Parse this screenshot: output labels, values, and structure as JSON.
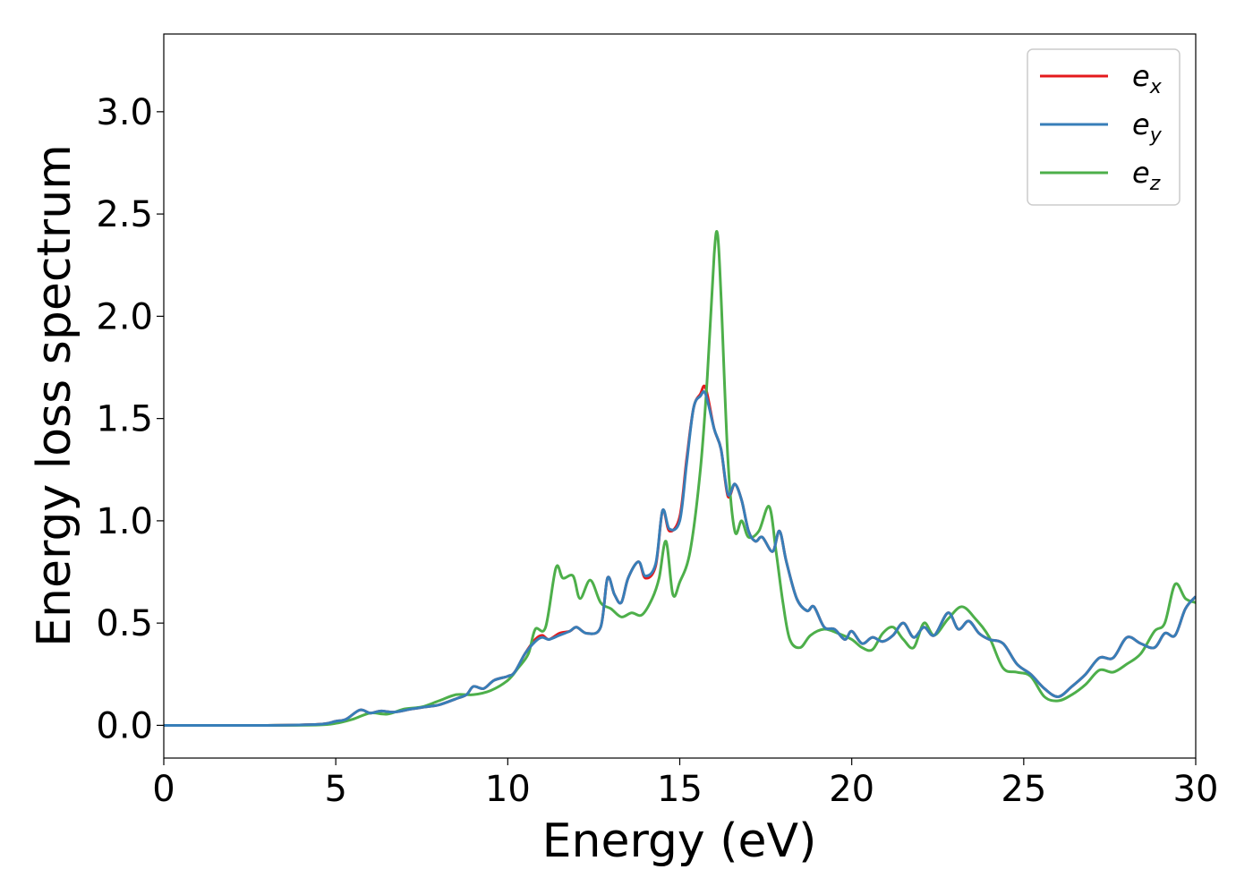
{
  "chart_data": {
    "type": "line",
    "title": "",
    "xlabel": "Energy (eV)",
    "ylabel": "Energy loss spectrum",
    "xlim": [
      0,
      30
    ],
    "ylim": [
      -0.16,
      3.38
    ],
    "xticks": [
      0,
      5,
      10,
      15,
      20,
      25,
      30
    ],
    "xtick_labels": [
      "0",
      "5",
      "10",
      "15",
      "20",
      "25",
      "30"
    ],
    "yticks": [
      0.0,
      0.5,
      1.0,
      1.5,
      2.0,
      2.5,
      3.0
    ],
    "ytick_labels": [
      "0.0",
      "0.5",
      "1.0",
      "1.5",
      "2.0",
      "2.5",
      "3.0"
    ],
    "grid": false,
    "legend_position": "top-right",
    "series": [
      {
        "name": "e_x",
        "legend_base": "e",
        "legend_sub": "x",
        "color": "#e41a1c",
        "points": [
          [
            0,
            0
          ],
          [
            3,
            0
          ],
          [
            4.5,
            0.005
          ],
          [
            5,
            0.02
          ],
          [
            5.3,
            0.03
          ],
          [
            5.7,
            0.075
          ],
          [
            6,
            0.06
          ],
          [
            6.3,
            0.07
          ],
          [
            6.7,
            0.065
          ],
          [
            7.2,
            0.08
          ],
          [
            7.6,
            0.09
          ],
          [
            8,
            0.1
          ],
          [
            8.5,
            0.13
          ],
          [
            8.8,
            0.15
          ],
          [
            9,
            0.19
          ],
          [
            9.3,
            0.18
          ],
          [
            9.6,
            0.22
          ],
          [
            10,
            0.24
          ],
          [
            10.2,
            0.26
          ],
          [
            10.5,
            0.35
          ],
          [
            10.8,
            0.42
          ],
          [
            11,
            0.44
          ],
          [
            11.2,
            0.42
          ],
          [
            11.5,
            0.45
          ],
          [
            11.8,
            0.46
          ],
          [
            12,
            0.48
          ],
          [
            12.3,
            0.45
          ],
          [
            12.7,
            0.48
          ],
          [
            12.9,
            0.72
          ],
          [
            13.1,
            0.64
          ],
          [
            13.3,
            0.6
          ],
          [
            13.5,
            0.72
          ],
          [
            13.8,
            0.8
          ],
          [
            14,
            0.72
          ],
          [
            14.3,
            0.78
          ],
          [
            14.5,
            1.05
          ],
          [
            14.7,
            0.95
          ],
          [
            15,
            1.02
          ],
          [
            15.2,
            1.3
          ],
          [
            15.4,
            1.55
          ],
          [
            15.6,
            1.62
          ],
          [
            15.75,
            1.65
          ],
          [
            16,
            1.45
          ],
          [
            16.2,
            1.35
          ],
          [
            16.4,
            1.12
          ],
          [
            16.6,
            1.18
          ],
          [
            16.8,
            1.1
          ],
          [
            17,
            0.95
          ],
          [
            17.2,
            0.9
          ],
          [
            17.4,
            0.92
          ],
          [
            17.7,
            0.85
          ],
          [
            17.9,
            0.95
          ],
          [
            18.1,
            0.8
          ],
          [
            18.4,
            0.62
          ],
          [
            18.7,
            0.56
          ],
          [
            18.9,
            0.58
          ],
          [
            19.2,
            0.48
          ],
          [
            19.5,
            0.47
          ],
          [
            19.8,
            0.42
          ],
          [
            20,
            0.46
          ],
          [
            20.3,
            0.4
          ],
          [
            20.6,
            0.43
          ],
          [
            20.9,
            0.41
          ],
          [
            21.2,
            0.44
          ],
          [
            21.5,
            0.5
          ],
          [
            21.8,
            0.43
          ],
          [
            22.1,
            0.48
          ],
          [
            22.4,
            0.44
          ],
          [
            22.8,
            0.55
          ],
          [
            23.1,
            0.47
          ],
          [
            23.4,
            0.51
          ],
          [
            23.7,
            0.45
          ],
          [
            24,
            0.42
          ],
          [
            24.4,
            0.4
          ],
          [
            24.8,
            0.3
          ],
          [
            25.2,
            0.25
          ],
          [
            25.6,
            0.18
          ],
          [
            26,
            0.14
          ],
          [
            26.4,
            0.19
          ],
          [
            26.8,
            0.25
          ],
          [
            27.2,
            0.33
          ],
          [
            27.6,
            0.33
          ],
          [
            28,
            0.43
          ],
          [
            28.4,
            0.4
          ],
          [
            28.8,
            0.38
          ],
          [
            29.1,
            0.45
          ],
          [
            29.4,
            0.44
          ],
          [
            29.7,
            0.57
          ],
          [
            30,
            0.63
          ]
        ]
      },
      {
        "name": "e_y",
        "legend_base": "e",
        "legend_sub": "y",
        "color": "#377eb8",
        "points": [
          [
            0,
            0
          ],
          [
            3,
            0
          ],
          [
            4.5,
            0.005
          ],
          [
            5,
            0.02
          ],
          [
            5.3,
            0.03
          ],
          [
            5.7,
            0.075
          ],
          [
            6,
            0.06
          ],
          [
            6.3,
            0.07
          ],
          [
            6.7,
            0.065
          ],
          [
            7.2,
            0.08
          ],
          [
            7.6,
            0.09
          ],
          [
            8,
            0.1
          ],
          [
            8.5,
            0.13
          ],
          [
            8.8,
            0.15
          ],
          [
            9,
            0.19
          ],
          [
            9.3,
            0.18
          ],
          [
            9.6,
            0.22
          ],
          [
            10,
            0.24
          ],
          [
            10.2,
            0.26
          ],
          [
            10.5,
            0.35
          ],
          [
            10.8,
            0.41
          ],
          [
            11,
            0.43
          ],
          [
            11.2,
            0.42
          ],
          [
            11.5,
            0.44
          ],
          [
            11.8,
            0.46
          ],
          [
            12,
            0.48
          ],
          [
            12.3,
            0.45
          ],
          [
            12.7,
            0.48
          ],
          [
            12.9,
            0.72
          ],
          [
            13.1,
            0.64
          ],
          [
            13.3,
            0.6
          ],
          [
            13.5,
            0.72
          ],
          [
            13.8,
            0.8
          ],
          [
            14,
            0.73
          ],
          [
            14.3,
            0.79
          ],
          [
            14.5,
            1.05
          ],
          [
            14.7,
            0.96
          ],
          [
            15,
            1.0
          ],
          [
            15.2,
            1.28
          ],
          [
            15.4,
            1.55
          ],
          [
            15.6,
            1.61
          ],
          [
            15.75,
            1.62
          ],
          [
            16,
            1.45
          ],
          [
            16.2,
            1.35
          ],
          [
            16.4,
            1.13
          ],
          [
            16.6,
            1.18
          ],
          [
            16.8,
            1.1
          ],
          [
            17,
            0.95
          ],
          [
            17.2,
            0.9
          ],
          [
            17.4,
            0.92
          ],
          [
            17.7,
            0.85
          ],
          [
            17.9,
            0.95
          ],
          [
            18.1,
            0.8
          ],
          [
            18.4,
            0.62
          ],
          [
            18.7,
            0.56
          ],
          [
            18.9,
            0.58
          ],
          [
            19.2,
            0.48
          ],
          [
            19.5,
            0.47
          ],
          [
            19.8,
            0.42
          ],
          [
            20,
            0.46
          ],
          [
            20.3,
            0.4
          ],
          [
            20.6,
            0.43
          ],
          [
            20.9,
            0.41
          ],
          [
            21.2,
            0.44
          ],
          [
            21.5,
            0.5
          ],
          [
            21.8,
            0.43
          ],
          [
            22.1,
            0.48
          ],
          [
            22.4,
            0.44
          ],
          [
            22.8,
            0.55
          ],
          [
            23.1,
            0.47
          ],
          [
            23.4,
            0.51
          ],
          [
            23.7,
            0.45
          ],
          [
            24,
            0.42
          ],
          [
            24.4,
            0.4
          ],
          [
            24.8,
            0.3
          ],
          [
            25.2,
            0.25
          ],
          [
            25.6,
            0.18
          ],
          [
            26,
            0.14
          ],
          [
            26.4,
            0.19
          ],
          [
            26.8,
            0.25
          ],
          [
            27.2,
            0.33
          ],
          [
            27.6,
            0.33
          ],
          [
            28,
            0.43
          ],
          [
            28.4,
            0.4
          ],
          [
            28.8,
            0.38
          ],
          [
            29.1,
            0.45
          ],
          [
            29.4,
            0.44
          ],
          [
            29.7,
            0.57
          ],
          [
            30,
            0.63
          ]
        ]
      },
      {
        "name": "e_z",
        "legend_base": "e",
        "legend_sub": "z",
        "color": "#4daf4a",
        "points": [
          [
            0,
            0
          ],
          [
            3,
            0
          ],
          [
            4.5,
            0.002
          ],
          [
            5,
            0.01
          ],
          [
            5.5,
            0.03
          ],
          [
            6,
            0.06
          ],
          [
            6.5,
            0.055
          ],
          [
            7,
            0.08
          ],
          [
            7.5,
            0.09
          ],
          [
            8,
            0.12
          ],
          [
            8.5,
            0.15
          ],
          [
            9,
            0.15
          ],
          [
            9.5,
            0.17
          ],
          [
            10,
            0.22
          ],
          [
            10.3,
            0.28
          ],
          [
            10.6,
            0.35
          ],
          [
            10.8,
            0.47
          ],
          [
            11.1,
            0.48
          ],
          [
            11.4,
            0.77
          ],
          [
            11.6,
            0.72
          ],
          [
            11.9,
            0.73
          ],
          [
            12.1,
            0.62
          ],
          [
            12.4,
            0.71
          ],
          [
            12.7,
            0.6
          ],
          [
            13,
            0.57
          ],
          [
            13.3,
            0.53
          ],
          [
            13.6,
            0.55
          ],
          [
            13.9,
            0.54
          ],
          [
            14.2,
            0.62
          ],
          [
            14.4,
            0.72
          ],
          [
            14.6,
            0.9
          ],
          [
            14.8,
            0.64
          ],
          [
            15,
            0.7
          ],
          [
            15.3,
            0.85
          ],
          [
            15.6,
            1.25
          ],
          [
            15.8,
            1.7
          ],
          [
            16,
            2.3
          ],
          [
            16.1,
            2.4
          ],
          [
            16.2,
            2.1
          ],
          [
            16.4,
            1.3
          ],
          [
            16.6,
            0.95
          ],
          [
            16.8,
            1.0
          ],
          [
            17,
            0.92
          ],
          [
            17.3,
            0.95
          ],
          [
            17.6,
            1.07
          ],
          [
            17.8,
            0.85
          ],
          [
            18,
            0.6
          ],
          [
            18.2,
            0.42
          ],
          [
            18.5,
            0.38
          ],
          [
            18.8,
            0.44
          ],
          [
            19.2,
            0.47
          ],
          [
            19.6,
            0.45
          ],
          [
            20,
            0.42
          ],
          [
            20.3,
            0.38
          ],
          [
            20.6,
            0.37
          ],
          [
            20.9,
            0.45
          ],
          [
            21.2,
            0.48
          ],
          [
            21.5,
            0.42
          ],
          [
            21.8,
            0.38
          ],
          [
            22.1,
            0.5
          ],
          [
            22.4,
            0.44
          ],
          [
            22.8,
            0.52
          ],
          [
            23.2,
            0.58
          ],
          [
            23.6,
            0.52
          ],
          [
            24,
            0.43
          ],
          [
            24.4,
            0.28
          ],
          [
            24.8,
            0.26
          ],
          [
            25.2,
            0.24
          ],
          [
            25.6,
            0.14
          ],
          [
            26,
            0.12
          ],
          [
            26.4,
            0.15
          ],
          [
            26.8,
            0.2
          ],
          [
            27.2,
            0.27
          ],
          [
            27.6,
            0.26
          ],
          [
            28,
            0.3
          ],
          [
            28.4,
            0.35
          ],
          [
            28.8,
            0.46
          ],
          [
            29.1,
            0.5
          ],
          [
            29.4,
            0.69
          ],
          [
            29.7,
            0.62
          ],
          [
            30,
            0.6
          ]
        ]
      }
    ]
  }
}
